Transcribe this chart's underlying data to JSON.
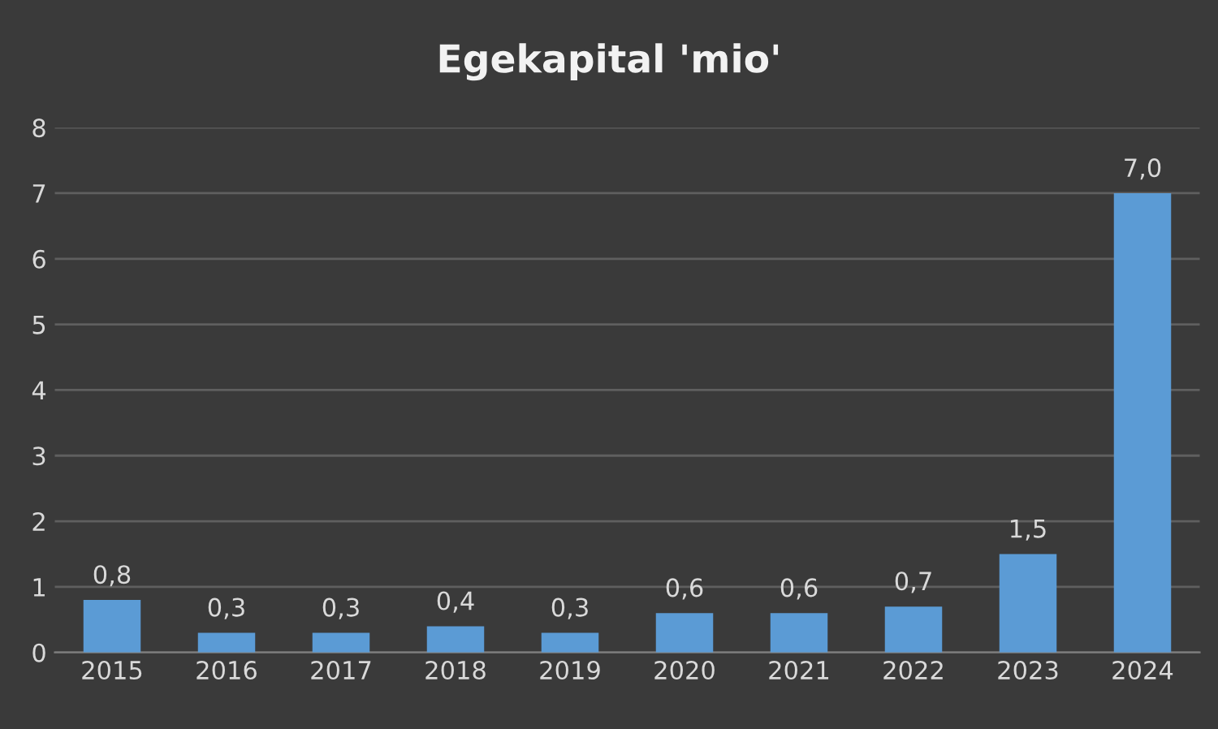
{
  "chart_data": {
    "type": "bar",
    "title": "Egekapital 'mio'",
    "categories": [
      "2015",
      "2016",
      "2017",
      "2018",
      "2019",
      "2020",
      "2021",
      "2022",
      "2023",
      "2024"
    ],
    "values": [
      0.8,
      0.3,
      0.3,
      0.4,
      0.3,
      0.6,
      0.6,
      0.7,
      1.5,
      7.0
    ],
    "value_labels": [
      "0,8",
      "0,3",
      "0,3",
      "0,4",
      "0,3",
      "0,6",
      "0,6",
      "0,7",
      "1,5",
      "7,0"
    ],
    "color": "#5b9bd5",
    "ylim": [
      0,
      8
    ],
    "yticks": [
      0,
      1,
      2,
      3,
      4,
      5,
      6,
      7,
      8
    ],
    "grid": "y"
  }
}
